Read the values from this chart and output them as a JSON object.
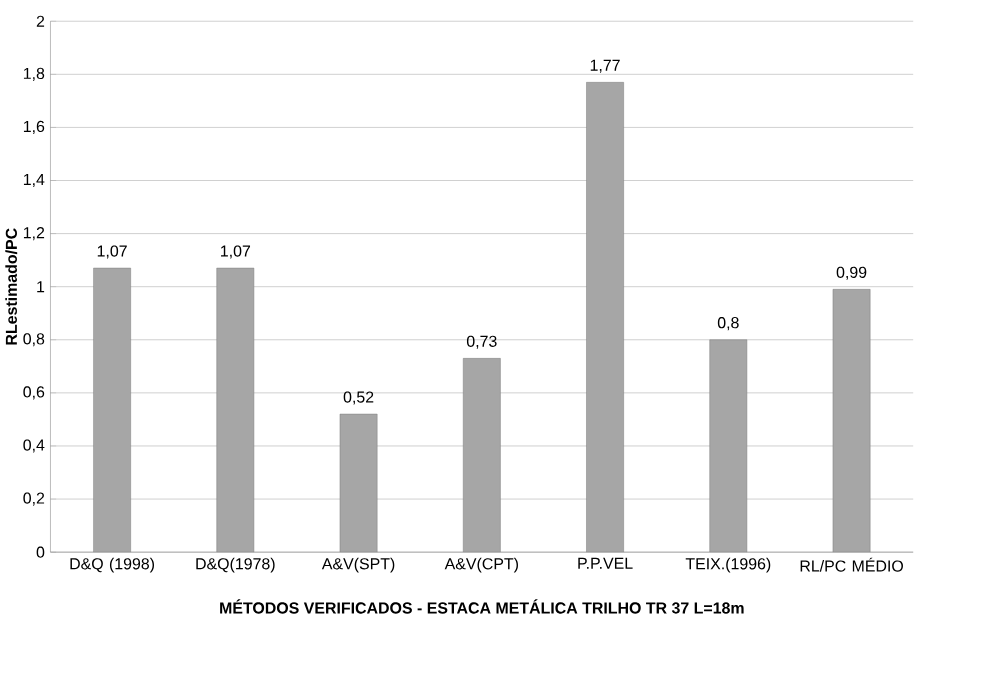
{
  "chart_data": {
    "type": "bar",
    "xlabel": "MÉTODOS VERIFICADOS - ESTACA METÁLICA TRILHO TR 37 L=18m",
    "ylabel": "RLestimado/PC",
    "categories": [
      "D&Q (1998)",
      "D&Q(1978)",
      "A&V(SPT)",
      "A&V(CPT)",
      "P.P.VEL",
      "TEIX.(1996)",
      "RL/PC MÉDIO"
    ],
    "values": [
      1.07,
      1.07,
      0.52,
      0.73,
      1.77,
      0.8,
      0.99
    ],
    "value_labels": [
      "1,07",
      "1,07",
      "0,52",
      "0,73",
      "1,77",
      "0,8",
      "0,99"
    ],
    "color": "#a6a6a6",
    "ylim": [
      0,
      2
    ],
    "yticks": [
      0,
      {
        "value": 0.2,
        "label": "0,2"
      },
      {
        "value": 0.4,
        "label": "0,4"
      },
      {
        "value": 0.6,
        "label": "0,6"
      },
      {
        "value": 0.8,
        "label": "0,8"
      },
      1,
      {
        "value": 1.2,
        "label": "1,2"
      },
      {
        "value": 1.4,
        "label": "1,4"
      },
      {
        "value": 1.6,
        "label": "1,6"
      },
      {
        "value": 1.8,
        "label": "1,8"
      },
      2
    ],
    "grid": "y"
  }
}
